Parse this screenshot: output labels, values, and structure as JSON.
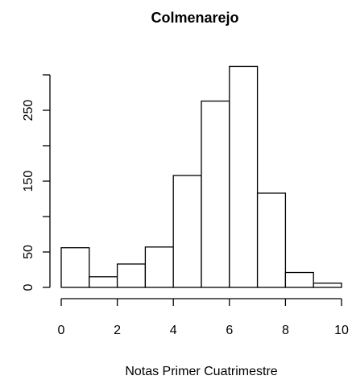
{
  "chart_data": {
    "type": "bar",
    "title": "Colmenarejo",
    "xlabel": "Notas Primer Cuatrimestre",
    "ylabel": "",
    "bins": [
      {
        "from": 0,
        "to": 1,
        "count": 56
      },
      {
        "from": 1,
        "to": 2,
        "count": 15
      },
      {
        "from": 2,
        "to": 3,
        "count": 33
      },
      {
        "from": 3,
        "to": 4,
        "count": 57
      },
      {
        "from": 4,
        "to": 5,
        "count": 158
      },
      {
        "from": 5,
        "to": 6,
        "count": 263
      },
      {
        "from": 6,
        "to": 7,
        "count": 312
      },
      {
        "from": 7,
        "to": 8,
        "count": 133
      },
      {
        "from": 8,
        "to": 9,
        "count": 21
      },
      {
        "from": 9,
        "to": 10,
        "count": 6
      }
    ],
    "xlim": [
      0,
      10
    ],
    "ylim": [
      0,
      300
    ],
    "x_ticks": [
      0,
      2,
      4,
      6,
      8,
      10
    ],
    "x_tick_labels": [
      "0",
      "2",
      "4",
      "6",
      "8",
      "10"
    ],
    "y_ticks": [
      0,
      50,
      100,
      150,
      200,
      250,
      300
    ],
    "y_tick_labels": [
      "0",
      "50",
      "",
      "150",
      "",
      "250",
      ""
    ],
    "grid": false,
    "legend": "none",
    "bar_fill": "#ffffff",
    "bar_stroke": "#000000"
  }
}
